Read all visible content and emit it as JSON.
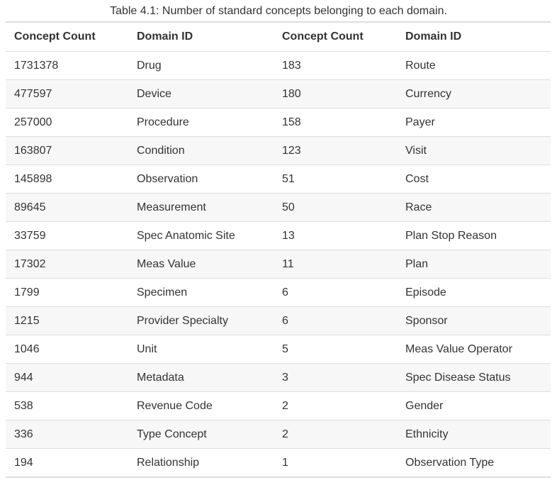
{
  "caption": "Table 4.1: Number of standard concepts belonging to each domain.",
  "columns": [
    "Concept Count",
    "Domain ID",
    "Concept Count",
    "Domain ID"
  ],
  "rows": [
    [
      "1731378",
      "Drug",
      "183",
      "Route"
    ],
    [
      "477597",
      "Device",
      "180",
      "Currency"
    ],
    [
      "257000",
      "Procedure",
      "158",
      "Payer"
    ],
    [
      "163807",
      "Condition",
      "123",
      "Visit"
    ],
    [
      "145898",
      "Observation",
      "51",
      "Cost"
    ],
    [
      "89645",
      "Measurement",
      "50",
      "Race"
    ],
    [
      "33759",
      "Spec Anatomic Site",
      "13",
      "Plan Stop Reason"
    ],
    [
      "17302",
      "Meas Value",
      "11",
      "Plan"
    ],
    [
      "1799",
      "Specimen",
      "6",
      "Episode"
    ],
    [
      "1215",
      "Provider Specialty",
      "6",
      "Sponsor"
    ],
    [
      "1046",
      "Unit",
      "5",
      "Meas Value Operator"
    ],
    [
      "944",
      "Metadata",
      "3",
      "Spec Disease Status"
    ],
    [
      "538",
      "Revenue Code",
      "2",
      "Gender"
    ],
    [
      "336",
      "Type Concept",
      "2",
      "Ethnicity"
    ],
    [
      "194",
      "Relationship",
      "1",
      "Observation Type"
    ]
  ]
}
